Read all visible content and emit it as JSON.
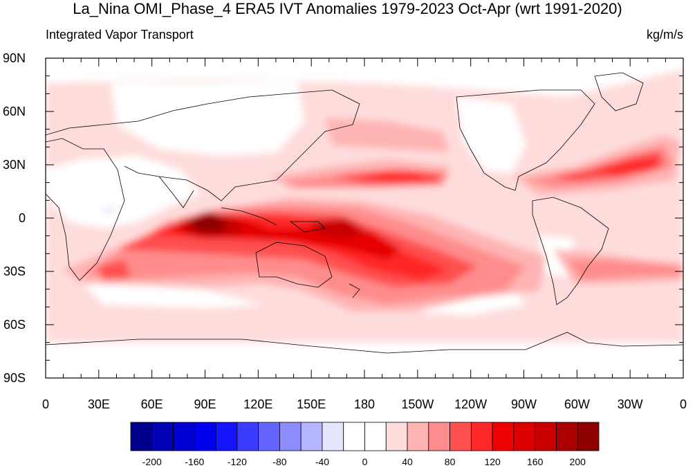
{
  "title": "La_Nina OMI_Phase_4 ERA5 IVT Anomalies 1979-2023 Oct-Apr (wrt 1991-2020)",
  "left_string": "Integrated Vapor Transport",
  "right_string": "kg/m/s",
  "lat_ticks": [
    "90N",
    "60N",
    "30N",
    "0",
    "30S",
    "60S",
    "90S"
  ],
  "lon_ticks": [
    "0",
    "30E",
    "60E",
    "90E",
    "120E",
    "150E",
    "180",
    "150W",
    "120W",
    "90W",
    "60W",
    "30W",
    "0"
  ],
  "colorbar": {
    "levels": [
      -220,
      -200,
      -180,
      -160,
      -140,
      -120,
      -100,
      -80,
      -60,
      -40,
      -20,
      0,
      20,
      40,
      60,
      80,
      100,
      120,
      140,
      160,
      180,
      200
    ],
    "labels": [
      "-200",
      "-160",
      "-120",
      "-80",
      "-40",
      "0",
      "40",
      "80",
      "120",
      "160",
      "200"
    ],
    "colors": [
      "#00008c",
      "#0000b4",
      "#0000d2",
      "#0000f0",
      "#1414ff",
      "#3c3cff",
      "#6464ff",
      "#8c8cff",
      "#b4b4ff",
      "#e6e6ff",
      "#ffffff",
      "#ffffff",
      "#ffdcdc",
      "#ffb4b4",
      "#ff8c8c",
      "#ff5050",
      "#ff2828",
      "#f00000",
      "#dc0000",
      "#c80000",
      "#aa0000",
      "#8c0000"
    ]
  },
  "field_colors": {
    "weak": "#ffdcdc",
    "light": "#ffb4b4",
    "medium": "#ff8c8c",
    "strong": "#ff5050",
    "red": "#ff2828",
    "deep": "#e60000",
    "darker": "#c80000",
    "darkest": "#8c0000",
    "negative": "#e6e6ff"
  }
}
